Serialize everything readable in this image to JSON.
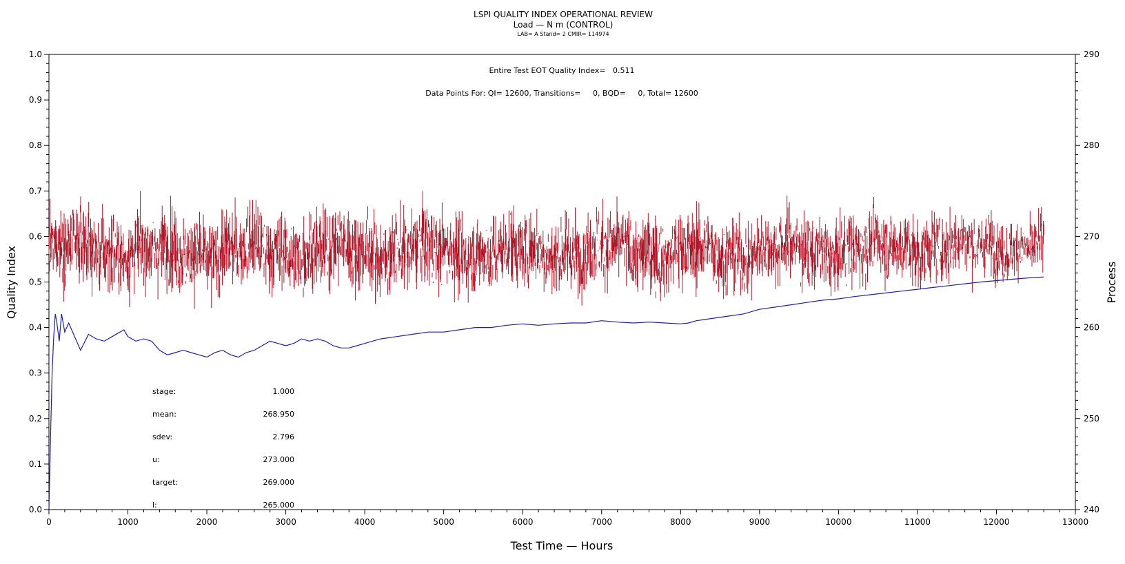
{
  "chart_data": {
    "type": "line",
    "title": "LSPI QUALITY INDEX OPERATIONAL REVIEW",
    "subtitle": "Load — N m (CONTROL)",
    "subtitle2": "LAB= A Stand= 2 CMIR= 114974",
    "annotations": {
      "eot": "Entire Test EOT Quality Index=   0.511",
      "points": "Data Points For: QI= 12600, Transitions=     0, BQD=     0, Total= 12600"
    },
    "xlabel": "Test Time — Hours",
    "ylabel": "Quality Index",
    "y2label": "Process",
    "xlim": [
      0,
      13000
    ],
    "ylim": [
      0.0,
      1.0
    ],
    "y2lim": [
      240,
      290
    ],
    "x_ticks": [
      "0",
      "1000",
      "2000",
      "3000",
      "4000",
      "5000",
      "6000",
      "7000",
      "8000",
      "9000",
      "10000",
      "11000",
      "12000",
      "13000"
    ],
    "y_ticks": [
      "0.0",
      "0.1",
      "0.2",
      "0.3",
      "0.4",
      "0.5",
      "0.6",
      "0.7",
      "0.8",
      "0.9",
      "1.0"
    ],
    "y2_ticks": [
      "240",
      "250",
      "260",
      "270",
      "280",
      "290"
    ],
    "series": [
      {
        "role": "process",
        "axis": "right",
        "color": "#b01728",
        "x_end": 12600,
        "envelope": [
          {
            "x": 0,
            "min": 262.5,
            "max": 274.5
          },
          {
            "x": 500,
            "min": 262.0,
            "max": 275.5
          },
          {
            "x": 1000,
            "min": 262.0,
            "max": 275.0
          },
          {
            "x": 1500,
            "min": 261.5,
            "max": 275.0
          },
          {
            "x": 2000,
            "min": 261.5,
            "max": 275.0
          },
          {
            "x": 2500,
            "min": 262.0,
            "max": 275.0
          },
          {
            "x": 3000,
            "min": 262.0,
            "max": 275.0
          },
          {
            "x": 3500,
            "min": 261.5,
            "max": 275.5
          },
          {
            "x": 4000,
            "min": 262.0,
            "max": 275.0
          },
          {
            "x": 4500,
            "min": 262.0,
            "max": 275.0
          },
          {
            "x": 5000,
            "min": 261.5,
            "max": 275.0
          },
          {
            "x": 5500,
            "min": 262.0,
            "max": 275.0
          },
          {
            "x": 6000,
            "min": 261.5,
            "max": 275.0
          },
          {
            "x": 6500,
            "min": 262.0,
            "max": 275.0
          },
          {
            "x": 7000,
            "min": 262.0,
            "max": 275.0
          },
          {
            "x": 7500,
            "min": 262.0,
            "max": 275.0
          },
          {
            "x": 8000,
            "min": 261.5,
            "max": 275.0
          },
          {
            "x": 8500,
            "min": 262.0,
            "max": 274.5
          },
          {
            "x": 9000,
            "min": 262.5,
            "max": 274.5
          },
          {
            "x": 9500,
            "min": 262.5,
            "max": 274.5
          },
          {
            "x": 10000,
            "min": 262.5,
            "max": 274.5
          },
          {
            "x": 10500,
            "min": 263.0,
            "max": 274.5
          },
          {
            "x": 11000,
            "min": 263.0,
            "max": 275.0
          },
          {
            "x": 11500,
            "min": 263.5,
            "max": 274.0
          },
          {
            "x": 12000,
            "min": 264.0,
            "max": 274.0
          },
          {
            "x": 12600,
            "min": 264.5,
            "max": 273.5
          }
        ]
      },
      {
        "role": "quality_index",
        "axis": "left",
        "color": "#1f1fa8",
        "x": [
          0,
          20,
          40,
          60,
          80,
          100,
          130,
          160,
          200,
          250,
          300,
          400,
          500,
          600,
          700,
          800,
          900,
          950,
          1000,
          1100,
          1200,
          1300,
          1400,
          1500,
          1600,
          1700,
          1800,
          1900,
          2000,
          2100,
          2200,
          2300,
          2400,
          2500,
          2600,
          2700,
          2800,
          2900,
          3000,
          3100,
          3200,
          3300,
          3400,
          3500,
          3600,
          3700,
          3800,
          3900,
          4000,
          4200,
          4400,
          4600,
          4800,
          5000,
          5200,
          5400,
          5600,
          5800,
          6000,
          6200,
          6400,
          6600,
          6800,
          7000,
          7200,
          7400,
          7600,
          7800,
          8000,
          8100,
          8200,
          8400,
          8600,
          8800,
          9000,
          9200,
          9400,
          9600,
          9800,
          10000,
          10200,
          10400,
          10600,
          10800,
          11000,
          11200,
          11400,
          11600,
          11800,
          12000,
          12200,
          12400,
          12600
        ],
        "y": [
          0.0,
          0.16,
          0.3,
          0.38,
          0.43,
          0.41,
          0.37,
          0.43,
          0.39,
          0.41,
          0.39,
          0.35,
          0.385,
          0.375,
          0.37,
          0.38,
          0.39,
          0.395,
          0.38,
          0.37,
          0.375,
          0.37,
          0.35,
          0.34,
          0.345,
          0.35,
          0.345,
          0.34,
          0.335,
          0.345,
          0.35,
          0.34,
          0.335,
          0.345,
          0.35,
          0.36,
          0.37,
          0.365,
          0.36,
          0.365,
          0.375,
          0.37,
          0.375,
          0.37,
          0.36,
          0.355,
          0.355,
          0.36,
          0.365,
          0.375,
          0.38,
          0.385,
          0.39,
          0.39,
          0.395,
          0.4,
          0.4,
          0.405,
          0.408,
          0.405,
          0.408,
          0.41,
          0.41,
          0.415,
          0.412,
          0.41,
          0.412,
          0.41,
          0.408,
          0.41,
          0.415,
          0.42,
          0.425,
          0.43,
          0.44,
          0.445,
          0.45,
          0.455,
          0.46,
          0.463,
          0.468,
          0.472,
          0.476,
          0.48,
          0.484,
          0.488,
          0.492,
          0.496,
          0.5,
          0.503,
          0.506,
          0.509,
          0.511
        ]
      }
    ]
  },
  "stats": {
    "stage_label": "stage:",
    "stage_value": "1.000",
    "mean_label": "mean:",
    "mean_value": "268.950",
    "sdev_label": "sdev:",
    "sdev_value": "2.796",
    "u_label": "u:",
    "u_value": "273.000",
    "target_label": "target:",
    "target_value": "269.000",
    "l_label": "l:",
    "l_value": "265.000"
  }
}
